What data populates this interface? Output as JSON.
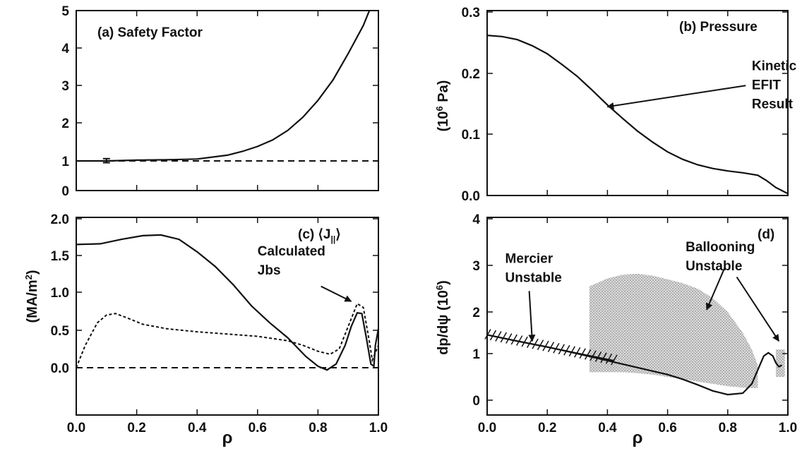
{
  "chart_data": [
    {
      "panel": "a",
      "type": "line",
      "title": "(a) Safety Factor",
      "xlabel": "",
      "ylabel": "",
      "xlim": [
        0,
        1
      ],
      "ylim": [
        0,
        5
      ],
      "xticks": [],
      "yticks": [
        "0",
        "1",
        "2",
        "3",
        "4",
        "5"
      ],
      "series": [
        {
          "style": "solid",
          "x": [
            0.0,
            0.1,
            0.2,
            0.3,
            0.4,
            0.5,
            0.55,
            0.6,
            0.65,
            0.7,
            0.75,
            0.8,
            0.85,
            0.9,
            0.93,
            0.95,
            0.97
          ],
          "y": [
            1.0,
            1.0,
            1.02,
            1.03,
            1.05,
            1.15,
            1.25,
            1.38,
            1.55,
            1.8,
            2.15,
            2.6,
            3.15,
            3.85,
            4.3,
            4.6,
            5.0
          ]
        },
        {
          "style": "dashed",
          "x": [
            0.0,
            1.0
          ],
          "y": [
            1.0,
            1.0
          ]
        }
      ],
      "errorbar": {
        "x": 0.1,
        "y": 1.0,
        "err": 0.06
      }
    },
    {
      "panel": "b",
      "type": "line",
      "title": "(b) Pressure",
      "ylabel_parts": {
        "pre": "(10",
        "sup": "6",
        "post": " Pa)"
      },
      "xlim": [
        0,
        1
      ],
      "ylim": [
        0,
        0.3
      ],
      "xticks": [],
      "yticks": [
        "0.0",
        "0.1",
        "0.2",
        "0.3"
      ],
      "annotation": {
        "lines": [
          "Kinetic",
          "EFIT",
          "Result"
        ],
        "x": 0.88,
        "y": 0.205,
        "arrow_to_x": 0.4,
        "arrow_to_y": 0.145
      },
      "series": [
        {
          "style": "solid",
          "x": [
            0.0,
            0.05,
            0.1,
            0.15,
            0.2,
            0.25,
            0.3,
            0.35,
            0.4,
            0.45,
            0.5,
            0.55,
            0.6,
            0.65,
            0.7,
            0.75,
            0.8,
            0.85,
            0.9,
            0.93,
            0.96,
            1.0
          ],
          "y": [
            0.262,
            0.26,
            0.255,
            0.245,
            0.232,
            0.214,
            0.195,
            0.172,
            0.148,
            0.126,
            0.105,
            0.087,
            0.071,
            0.059,
            0.05,
            0.044,
            0.04,
            0.037,
            0.033,
            0.024,
            0.013,
            0.003
          ]
        }
      ]
    },
    {
      "panel": "c",
      "type": "line",
      "title": "(c) ⟨J",
      "title_sub": "||",
      "title_end": "⟩",
      "ylabel_parts": {
        "pre": "(MA/m",
        "sup": "2",
        "post": ")"
      },
      "xlabel": "ρ",
      "xlim": [
        0,
        1
      ],
      "ylim": [
        -0.6,
        2.0
      ],
      "xticks": [
        "0.0",
        "0.2",
        "0.4",
        "0.6",
        "0.8",
        "1.0"
      ],
      "yticks": [
        "0.0",
        "0.5",
        "1.0",
        "1.5",
        "2.0"
      ],
      "annotation": {
        "lines": [
          "Calculated",
          "Jbs"
        ],
        "x": 0.6,
        "y": 1.5,
        "arrow_to_x": 0.91,
        "arrow_to_y": 0.88
      },
      "series": [
        {
          "style": "solid",
          "x": [
            0.0,
            0.08,
            0.15,
            0.22,
            0.28,
            0.34,
            0.4,
            0.46,
            0.52,
            0.58,
            0.64,
            0.7,
            0.76,
            0.8,
            0.83,
            0.86,
            0.89,
            0.91,
            0.93,
            0.945,
            0.96,
            0.975,
            0.985,
            0.99,
            1.0
          ],
          "y": [
            1.65,
            1.66,
            1.72,
            1.77,
            1.78,
            1.72,
            1.55,
            1.35,
            1.1,
            0.82,
            0.6,
            0.4,
            0.15,
            0.02,
            -0.03,
            0.05,
            0.3,
            0.55,
            0.73,
            0.72,
            0.4,
            0.05,
            0.02,
            0.3,
            0.52
          ]
        },
        {
          "style": "dotted",
          "x": [
            0.0,
            0.03,
            0.07,
            0.1,
            0.13,
            0.17,
            0.22,
            0.3,
            0.4,
            0.5,
            0.6,
            0.7,
            0.75,
            0.8,
            0.84,
            0.87,
            0.9,
            0.93,
            0.95,
            0.97,
            0.98,
            1.0
          ],
          "y": [
            0.0,
            0.3,
            0.6,
            0.7,
            0.72,
            0.66,
            0.58,
            0.52,
            0.48,
            0.45,
            0.42,
            0.36,
            0.3,
            0.22,
            0.18,
            0.25,
            0.55,
            0.85,
            0.8,
            0.35,
            0.1,
            0.3
          ]
        },
        {
          "style": "dashed",
          "x": [
            0.0,
            1.0
          ],
          "y": [
            0.0,
            0.0
          ]
        }
      ]
    },
    {
      "panel": "d",
      "type": "line",
      "title": "(d)",
      "ylabel_parts": {
        "pre": "dp/dψ (10",
        "sup": "6",
        "post": ")"
      },
      "xlabel": "ρ",
      "xlim": [
        0,
        1
      ],
      "ylim": [
        -0.2,
        4.0
      ],
      "xticks": [
        "0.0",
        "0.2",
        "0.4",
        "0.6",
        "0.8",
        "1.0"
      ],
      "yticks": [
        "0",
        "1",
        "2",
        "3",
        "4"
      ],
      "annotations": [
        {
          "lines": [
            "Mercier",
            "Unstable"
          ],
          "x": 0.06,
          "y": 3.05,
          "arrow_to_x": 0.15,
          "arrow_to_y": 1.3
        },
        {
          "lines": [
            "Ballooning",
            "Unstable"
          ],
          "x": 0.66,
          "y": 3.3,
          "arrow_to_x": 0.73,
          "arrow_to_y": 2.05
        }
      ],
      "extra_arrow": {
        "x": 0.83,
        "y": 2.75,
        "arrow_to_x": 0.97,
        "arrow_to_y": 1.3
      },
      "ballooning_region": {
        "x": [
          0.34,
          0.4,
          0.45,
          0.5,
          0.55,
          0.6,
          0.65,
          0.7,
          0.75,
          0.8,
          0.85,
          0.88,
          0.9
        ],
        "upper": [
          2.55,
          2.72,
          2.8,
          2.82,
          2.78,
          2.7,
          2.62,
          2.5,
          2.3,
          2.0,
          1.5,
          1.1,
          0.75
        ],
        "lower": [
          0.6,
          0.6,
          0.6,
          0.58,
          0.55,
          0.5,
          0.45,
          0.4,
          0.35,
          0.3,
          0.27,
          0.26,
          0.26
        ]
      },
      "edge_region": {
        "x": [
          0.96,
          0.99
        ],
        "upper": 1.1,
        "lower": 0.5
      },
      "mercier_line": {
        "x": [
          0.0,
          0.42
        ],
        "y": [
          1.45,
          0.85
        ]
      },
      "series": [
        {
          "style": "solid",
          "x": [
            0.0,
            0.1,
            0.2,
            0.3,
            0.4,
            0.5,
            0.6,
            0.65,
            0.7,
            0.75,
            0.8,
            0.85,
            0.88,
            0.9,
            0.92,
            0.935,
            0.95,
            0.96,
            0.97,
            0.98
          ],
          "y": [
            1.45,
            1.3,
            1.16,
            1.0,
            0.85,
            0.7,
            0.55,
            0.45,
            0.33,
            0.2,
            0.12,
            0.15,
            0.35,
            0.65,
            0.95,
            1.02,
            0.95,
            0.8,
            0.72,
            0.75
          ]
        }
      ]
    }
  ]
}
